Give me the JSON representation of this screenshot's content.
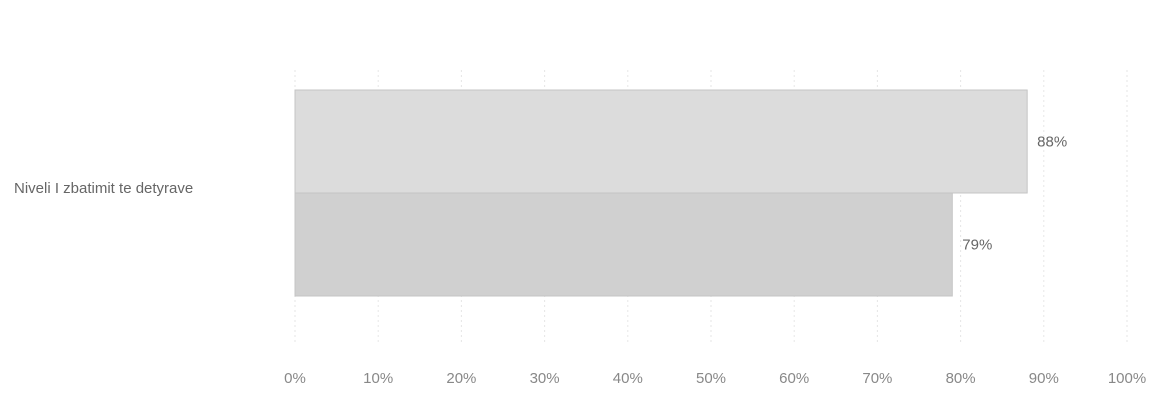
{
  "chart_data": {
    "type": "bar",
    "orientation": "horizontal",
    "categories": [
      "Niveli I zbatimit te detyrave"
    ],
    "series": [
      {
        "values": [
          88
        ],
        "data_label": "88%",
        "color": "#dcdcdc"
      },
      {
        "values": [
          79
        ],
        "data_label": "79%",
        "color": "#d0d0d0"
      }
    ],
    "xlim": [
      0,
      100
    ],
    "x_ticks": [
      "0%",
      "10%",
      "20%",
      "30%",
      "40%",
      "50%",
      "60%",
      "70%",
      "80%",
      "90%",
      "100%"
    ],
    "grid": true,
    "legend": "none"
  }
}
